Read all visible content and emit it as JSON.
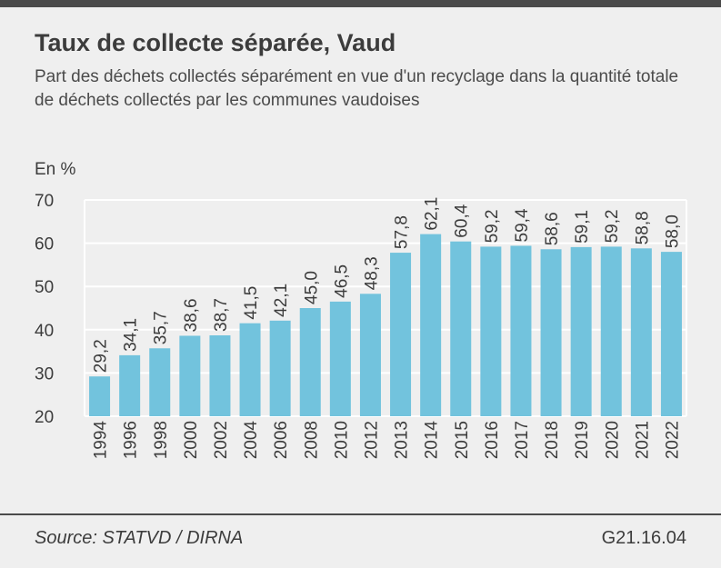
{
  "header": {
    "title": "Taux de collecte séparée, Vaud",
    "subtitle": "Part des déchets collectés séparément en vue d'un recyclage dans la quantité totale de déchets collectés par les communes vaudoises"
  },
  "footer": {
    "source": "Source: STATVD / DIRNA",
    "code": "G21.16.04"
  },
  "chart_data": {
    "type": "bar",
    "title": "Taux de collecte séparée, Vaud",
    "ylabel": "En %",
    "xlabel": "",
    "ylim": [
      20,
      70
    ],
    "yticks": [
      20,
      30,
      40,
      50,
      60,
      70
    ],
    "grid": true,
    "bar_color": "#72c3dd",
    "categories": [
      "1994",
      "1996",
      "1998",
      "2000",
      "2002",
      "2004",
      "2006",
      "2008",
      "2010",
      "2012",
      "2013",
      "2014",
      "2015",
      "2016",
      "2017",
      "2018",
      "2019",
      "2020",
      "2021",
      "2022"
    ],
    "values": [
      29.2,
      34.1,
      35.7,
      38.6,
      38.7,
      41.5,
      42.1,
      45.0,
      46.5,
      48.3,
      57.8,
      62.1,
      60.4,
      59.2,
      59.4,
      58.6,
      59.1,
      59.2,
      58.8,
      58.0
    ],
    "value_labels": [
      "29,2",
      "34,1",
      "35,7",
      "38,6",
      "38,7",
      "41,5",
      "42,1",
      "45,0",
      "46,5",
      "48,3",
      "57,8",
      "62,1",
      "60,4",
      "59,2",
      "59,4",
      "58,6",
      "59,1",
      "59,2",
      "58,8",
      "58,0"
    ]
  }
}
